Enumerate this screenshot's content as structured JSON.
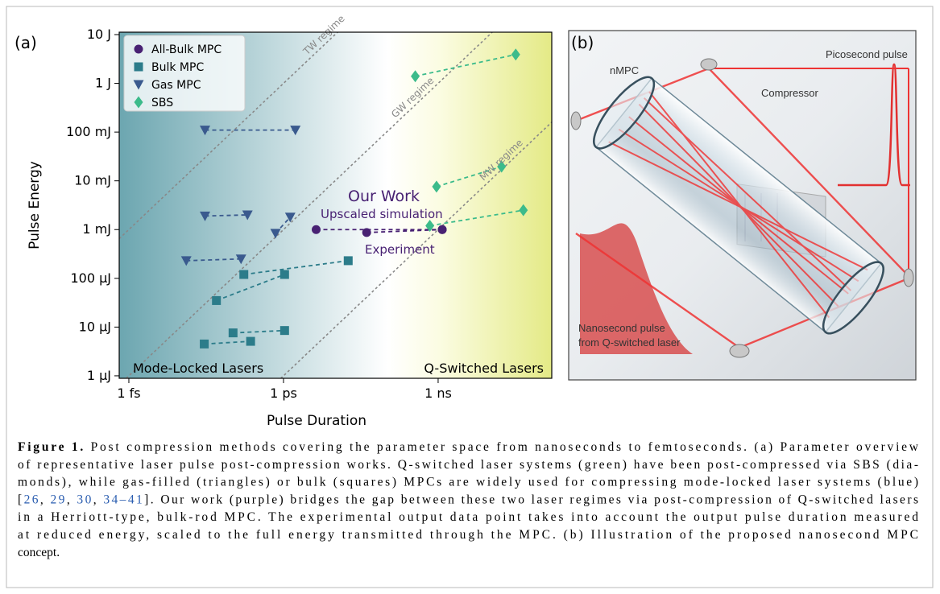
{
  "chart_data": {
    "type": "scatter",
    "panel_label": "(a)",
    "xlabel": "Pulse Duration",
    "ylabel": "Pulse Energy",
    "xscale": "log",
    "yscale": "log",
    "xlim": [
      6.5e-16,
      1.6e-07
    ],
    "ylim": [
      8.9e-07,
      11.2
    ],
    "xticks": [
      {
        "value": 1e-15,
        "label": "1 fs"
      },
      {
        "value": 1e-12,
        "label": "1 ps"
      },
      {
        "value": 1e-09,
        "label": "1 ns"
      }
    ],
    "yticks": [
      {
        "value": 1e-06,
        "label": "1 µJ"
      },
      {
        "value": 1e-05,
        "label": "10 µJ"
      },
      {
        "value": 0.0001,
        "label": "100 µJ"
      },
      {
        "value": 0.001,
        "label": "1 mJ"
      },
      {
        "value": 0.01,
        "label": "10 mJ"
      },
      {
        "value": 0.1,
        "label": "100 mJ"
      },
      {
        "value": 1,
        "label": "1 J"
      },
      {
        "value": 10,
        "label": "10 J"
      }
    ],
    "legend": "upper left",
    "series": [
      {
        "name": "All-Bulk MPC",
        "color": "#482173",
        "marker": "o",
        "x": [
          4.3e-12,
          1.2e-09,
          null,
          4.1e-11,
          1.2e-09
        ],
        "values": [
          0.001,
          0.001,
          null,
          0.00087,
          0.001
        ]
      },
      {
        "name": "Bulk MPC",
        "color": "#2c7c8a",
        "marker": "s",
        "x": [
          1.7e-13,
          1.8e-11,
          null,
          5e-14,
          1.05e-12,
          null,
          1.05e-13,
          1.05e-12,
          null,
          2.9e-14,
          2.3e-13
        ],
        "values": [
          0.00012,
          0.00023,
          null,
          3.5e-05,
          0.00012,
          null,
          7.6e-06,
          8.5e-06,
          null,
          4.5e-06,
          5.1e-06
        ]
      },
      {
        "name": "Gas MPC",
        "color": "#3a5a8e",
        "marker": "v",
        "x": [
          3e-14,
          1.7e-12,
          null,
          3e-14,
          2e-13,
          null,
          7e-13,
          1.35e-12,
          null,
          1.3e-14,
          1.5e-13
        ],
        "values": [
          0.11,
          0.11,
          null,
          0.0019,
          0.002,
          null,
          0.00084,
          0.0018,
          null,
          0.00023,
          0.00025
        ]
      },
      {
        "name": "SBS",
        "color": "#3cbb8b",
        "marker": "D",
        "x": [
          3.6e-10,
          3.2e-08,
          null,
          9.3e-10,
          1.7e-08,
          null,
          6.9e-10,
          4.5e-08
        ],
        "values": [
          1.4,
          3.9,
          null,
          0.0076,
          0.0196,
          null,
          0.0012,
          0.0025
        ]
      }
    ],
    "regimes": [
      {
        "label": "TW regime",
        "power": 1000000000000.0
      },
      {
        "label": "GW regime",
        "power": 1000000000.0
      },
      {
        "label": "MW regime",
        "power": 1000000.0
      }
    ],
    "annotations": [
      "Our Work",
      "Upscaled simulation",
      "Experiment"
    ],
    "region_labels": [
      "Mode-Locked Lasers",
      "Q-Switched Lasers"
    ]
  },
  "illustration": {
    "panel_label": "(b)",
    "labels": [
      "nMPC",
      "Compressor",
      "Picosecond pulse",
      "Nanosecond pulse",
      "from Q-switched laser"
    ]
  },
  "caption": {
    "lines": [
      [
        {
          "text": "Figure 1.",
          "bold": true
        },
        {
          "text": " Post compression methods covering the parameter space from nanoseconds to femtoseconds. (a) Parameter overview"
        }
      ],
      [
        {
          "text": "of representative laser pulse post-compression works. Q-switched laser systems (green) have been post-compressed via SBS (dia-"
        }
      ],
      [
        {
          "text": "monds), while gas-filled (triangles) or bulk (squares) MPCs are widely used for compressing mode-locked laser systems (blue)"
        }
      ],
      [
        {
          "text": "["
        },
        {
          "text": "26",
          "link": true
        },
        {
          "text": ", "
        },
        {
          "text": "29",
          "link": true
        },
        {
          "text": ", "
        },
        {
          "text": "30",
          "link": true
        },
        {
          "text": ", "
        },
        {
          "text": "34–41",
          "link": true
        },
        {
          "text": "]. Our work (purple) bridges the gap between these two laser regimes via post-compression of Q-switched lasers"
        }
      ],
      [
        {
          "text": "in a Herriott-type, bulk-rod MPC. The experimental output data point takes into account the output pulse duration measured"
        }
      ],
      [
        {
          "text": "at reduced energy, scaled to the full energy transmitted through the MPC. (b) Illustration of the proposed nanosecond MPC"
        }
      ],
      [
        {
          "text": "concept."
        }
      ]
    ]
  }
}
